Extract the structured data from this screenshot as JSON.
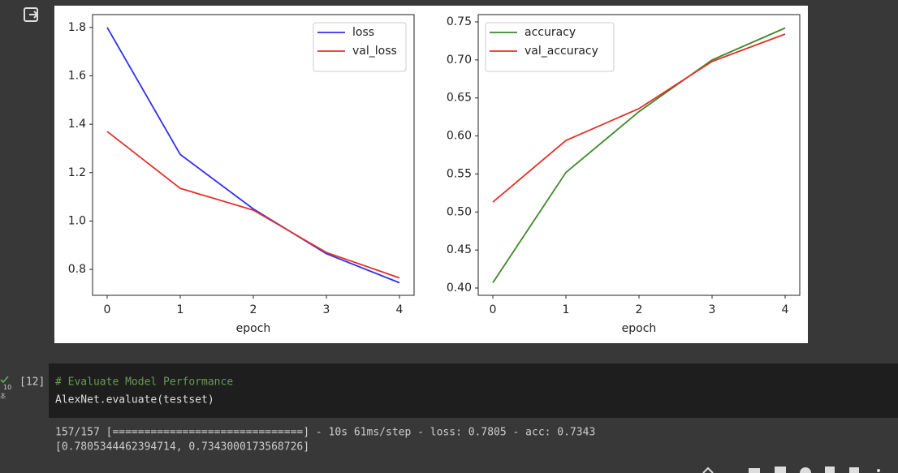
{
  "chart_data": [
    {
      "type": "line",
      "x": [
        0,
        1,
        2,
        3,
        4
      ],
      "xlabel": "epoch",
      "series": [
        {
          "name": "loss",
          "color": "#2f2ff0",
          "values": [
            1.8,
            1.275,
            1.05,
            0.865,
            0.745
          ]
        },
        {
          "name": "val_loss",
          "color": "#e0322a",
          "values": [
            1.37,
            1.135,
            1.045,
            0.87,
            0.765
          ]
        }
      ],
      "xlim": [
        -0.2,
        4.2
      ],
      "xticks": [
        0,
        1,
        2,
        3,
        4
      ],
      "ylim": [
        0.693,
        1.853
      ],
      "yticks": [
        0.8,
        {
          "value": 1,
          "label": "1.0"
        },
        1.2,
        1.4,
        1.6,
        1.8
      ],
      "legend": "upper right"
    },
    {
      "type": "line",
      "x": [
        0,
        1,
        2,
        3,
        4
      ],
      "xlabel": "epoch",
      "series": [
        {
          "name": "accuracy",
          "color": "#3a8a2a",
          "values": [
            0.407,
            0.552,
            0.632,
            0.7,
            0.742
          ]
        },
        {
          "name": "val_accuracy",
          "color": "#e0322a",
          "values": [
            0.513,
            0.594,
            0.636,
            0.698,
            0.734
          ]
        }
      ],
      "xlim": [
        -0.2,
        4.2
      ],
      "xticks": [
        0,
        1,
        2,
        3,
        4
      ],
      "ylim": [
        0.3904,
        0.7596
      ],
      "yticks": [
        {
          "value": 0.4,
          "label": "0.40"
        },
        0.45,
        {
          "value": 0.5,
          "label": "0.50"
        },
        0.55,
        {
          "value": 0.6,
          "label": "0.60"
        },
        0.65,
        {
          "value": 0.7,
          "label": "0.70"
        },
        0.75
      ],
      "legend": "upper left"
    }
  ],
  "cell": {
    "number": "[12]",
    "time": "10",
    "time_unit": "초",
    "code": [
      "# Evaluate Model Performance",
      "AlexNet.evaluate(testset)"
    ],
    "output": [
      "157/157 [==============================] - 10s 61ms/step - loss: 0.7805 - acc: 0.7343",
      "[0.7805344462394714, 0.7343000173568726]"
    ]
  }
}
